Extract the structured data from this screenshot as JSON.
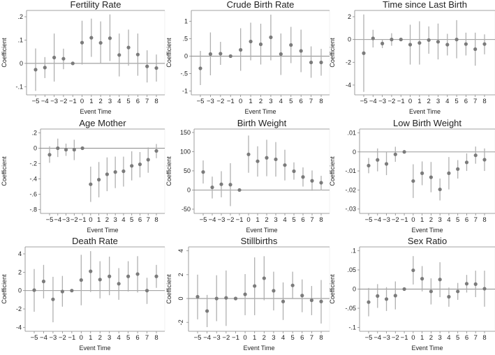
{
  "chart_data": [
    {
      "type": "scatter",
      "title": "Fertility Rate",
      "xlabel": "Event Time",
      "ylabel": "Coefficient",
      "categories": [
        "−5",
        "−4",
        "−3",
        "−2",
        "−1",
        "0",
        "1",
        "2",
        "3",
        "4",
        "5",
        "6",
        "7",
        "8"
      ],
      "yticks": [
        {
          "v": -0.1,
          "l": "-.1"
        },
        {
          "v": 0,
          "l": "0"
        },
        {
          "v": 0.1,
          "l": ".1"
        },
        {
          "v": 0.2,
          "l": ".2"
        }
      ],
      "ylim": [
        -0.135,
        0.227
      ],
      "estimate": [
        -0.027,
        -0.018,
        0.025,
        0.02,
        0,
        0.089,
        0.11,
        0.088,
        0.108,
        0.036,
        0.068,
        0.038,
        -0.013,
        -0.02
      ],
      "ci_low": [
        -0.118,
        -0.063,
        -0.078,
        -0.025,
        0,
        -0.005,
        0.028,
        0,
        0.01,
        -0.056,
        -0.01,
        -0.053,
        -0.082,
        -0.078
      ],
      "ci_high": [
        0.064,
        0.027,
        0.128,
        0.063,
        0,
        0.183,
        0.192,
        0.18,
        0.21,
        0.128,
        0.145,
        0.128,
        0.056,
        0.038
      ]
    },
    {
      "type": "scatter",
      "title": "Crude Birth Rate",
      "xlabel": "Event Time",
      "ylabel": "Coefficient",
      "categories": [
        "−5",
        "−3",
        "−2",
        "−1",
        "0",
        "1",
        "2",
        "3",
        "4",
        "5",
        "6",
        "7",
        "8"
      ],
      "yticks": [
        {
          "v": -1,
          "l": "-1"
        },
        {
          "v": -0.5,
          "l": "-.5"
        },
        {
          "v": 0,
          "l": "0"
        },
        {
          "v": 0.5,
          "l": ".5"
        },
        {
          "v": 1,
          "l": "1"
        }
      ],
      "ylim": [
        -1.11,
        1.31
      ],
      "estimate": [
        -0.35,
        0.06,
        0.07,
        0,
        0.18,
        0.42,
        0.34,
        0.54,
        0.06,
        0.32,
        0.15,
        -0.18,
        -0.18
      ],
      "ci_low": [
        -0.83,
        -0.55,
        -0.25,
        0,
        -0.42,
        -0.12,
        -0.24,
        -0.12,
        -0.54,
        -0.2,
        -0.46,
        -0.62,
        -0.56
      ],
      "ci_high": [
        0.15,
        0.68,
        0.41,
        0,
        0.8,
        0.96,
        0.93,
        1.19,
        0.65,
        0.84,
        0.76,
        0.28,
        0.21
      ]
    },
    {
      "type": "scatter",
      "title": "Time since Last Birth",
      "xlabel": "Event Time",
      "ylabel": "Coefficient",
      "categories": [
        "−5",
        "−4",
        "−3",
        "−2",
        "−1",
        "0",
        "1",
        "2",
        "3",
        "4",
        "5",
        "6",
        "7",
        "8"
      ],
      "yticks": [
        {
          "v": -4,
          "l": "-4"
        },
        {
          "v": -2,
          "l": "-2"
        },
        {
          "v": 0,
          "l": "0"
        },
        {
          "v": 2,
          "l": "2"
        }
      ],
      "ylim": [
        -4.86,
        2.55
      ],
      "estimate": [
        -1.2,
        0.1,
        -0.35,
        0,
        0,
        -0.45,
        -0.3,
        -0.05,
        -0.2,
        -0.45,
        0,
        -0.4,
        -0.85,
        -0.4
      ],
      "ci_low": [
        -4.6,
        -0.7,
        -0.75,
        -0.55,
        0,
        -2.2,
        -2.2,
        -1.25,
        -1.75,
        -1.4,
        -1.65,
        -1.4,
        -2.3,
        -1.3
      ],
      "ci_high": [
        2.2,
        0.85,
        0.0,
        0.55,
        0,
        1.3,
        1.6,
        1.15,
        1.4,
        0.5,
        1.7,
        0.6,
        0.6,
        0.45
      ]
    },
    {
      "type": "scatter",
      "title": "Age Mother",
      "xlabel": "Event Time",
      "ylabel": "Coefficient",
      "categories": [
        "−5",
        "−4",
        "−3",
        "−2",
        "−1",
        "0",
        "1",
        "2",
        "3",
        "4",
        "5",
        "6",
        "7",
        "8"
      ],
      "yticks": [
        {
          "v": -0.8,
          "l": "-.8"
        },
        {
          "v": -0.6,
          "l": "-.6"
        },
        {
          "v": -0.4,
          "l": "-.4"
        },
        {
          "v": -0.2,
          "l": "-.2"
        },
        {
          "v": 0,
          "l": "0"
        },
        {
          "v": 0.2,
          "l": ".2"
        }
      ],
      "ylim": [
        -0.85,
        0.25
      ],
      "estimate": [
        -0.085,
        0,
        -0.02,
        -0.02,
        0,
        -0.47,
        -0.41,
        -0.34,
        -0.31,
        -0.3,
        -0.23,
        -0.21,
        -0.15,
        -0.035
      ],
      "ci_low": [
        -0.19,
        -0.115,
        -0.1,
        -0.155,
        0,
        -0.7,
        -0.64,
        -0.56,
        -0.52,
        -0.5,
        -0.42,
        -0.38,
        -0.32,
        -0.13
      ],
      "ci_high": [
        0.025,
        0.125,
        0.06,
        0.11,
        0,
        -0.24,
        -0.18,
        -0.12,
        -0.11,
        -0.11,
        -0.04,
        -0.05,
        0.01,
        0.055
      ]
    },
    {
      "type": "scatter",
      "title": "Birth Weight",
      "xlabel": "Event Time",
      "ylabel": "Coefficient",
      "categories": [
        "−5",
        "−4",
        "−3",
        "−2",
        "−1",
        "0",
        "1",
        "2",
        "3",
        "4",
        "5",
        "6",
        "7",
        "8"
      ],
      "yticks": [
        {
          "v": -50,
          "l": "-50"
        },
        {
          "v": 0,
          "l": "0"
        },
        {
          "v": 50,
          "l": "50"
        },
        {
          "v": 100,
          "l": "100"
        },
        {
          "v": 150,
          "l": "150"
        }
      ],
      "ylim": [
        -61,
        159
      ],
      "estimate": [
        47,
        7,
        15,
        14,
        0,
        93,
        75,
        84,
        80,
        65,
        49,
        34,
        24,
        19
      ],
      "ci_low": [
        17,
        -22,
        -19,
        -42,
        0,
        45,
        35,
        36,
        35,
        25,
        27,
        9,
        -2,
        0
      ],
      "ci_high": [
        77,
        35,
        49,
        70,
        0,
        142,
        114,
        131,
        125,
        105,
        72,
        59,
        51,
        37
      ]
    },
    {
      "type": "scatter",
      "title": "Low Birth Weight",
      "xlabel": "Event Time",
      "ylabel": "Coefficient",
      "categories": [
        "−5",
        "−4",
        "−3",
        "−2",
        "−1",
        "0",
        "1",
        "2",
        "3",
        "4",
        "5",
        "6",
        "7",
        "8"
      ],
      "yticks": [
        {
          "v": -0.03,
          "l": "-.03"
        },
        {
          "v": -0.02,
          "l": "-.02"
        },
        {
          "v": -0.01,
          "l": "-.01"
        },
        {
          "v": 0,
          "l": "0"
        },
        {
          "v": 0.01,
          "l": ".01"
        }
      ],
      "ylim": [
        -0.0323,
        0.012
      ],
      "estimate": [
        -0.0072,
        -0.0042,
        -0.0063,
        -0.0013,
        0,
        -0.0153,
        -0.0112,
        -0.0133,
        -0.0197,
        -0.0112,
        -0.009,
        -0.0055,
        -0.0018,
        -0.0041
      ],
      "ci_low": [
        -0.0112,
        -0.0102,
        -0.0122,
        -0.0052,
        0,
        -0.0242,
        -0.0175,
        -0.0212,
        -0.0255,
        -0.0197,
        -0.014,
        -0.01,
        -0.0062,
        -0.01
      ],
      "ci_high": [
        -0.0032,
        0.0018,
        -0.0001,
        0.0027,
        0,
        -0.0065,
        -0.005,
        -0.0053,
        -0.014,
        -0.0027,
        -0.0043,
        -0.0008,
        0.0028,
        0.0018
      ]
    },
    {
      "type": "scatter",
      "title": "Death Rate",
      "xlabel": "Event Time",
      "ylabel": "Coefficient",
      "categories": [
        "−5",
        "−4",
        "−3",
        "−2",
        "−1",
        "0",
        "1",
        "2",
        "3",
        "4",
        "5",
        "6",
        "7",
        "8"
      ],
      "yticks": [
        {
          "v": -4,
          "l": "-4"
        },
        {
          "v": -2,
          "l": "-2"
        },
        {
          "v": 0,
          "l": "0"
        },
        {
          "v": 2,
          "l": "2"
        },
        {
          "v": 4,
          "l": "4"
        }
      ],
      "ylim": [
        -4.43,
        4.76
      ],
      "estimate": [
        0.05,
        1.0,
        -0.95,
        -0.1,
        0,
        1.15,
        2.1,
        1.2,
        1.55,
        0.75,
        1.55,
        1.8,
        0,
        1.55
      ],
      "ci_low": [
        -2.3,
        -0.85,
        -3.45,
        -1.75,
        0,
        -1.6,
        -0.15,
        -0.85,
        -0.5,
        -1.0,
        -0.1,
        -0.2,
        -1.45,
        0.3
      ],
      "ci_high": [
        2.35,
        2.8,
        1.5,
        1.6,
        0,
        3.9,
        4.3,
        3.2,
        3.7,
        2.45,
        3.2,
        3.75,
        1.4,
        2.8
      ]
    },
    {
      "type": "scatter",
      "title": "Stillbirths",
      "xlabel": "Event Time",
      "ylabel": "Coefficient",
      "rotated_yticks": true,
      "categories": [
        "−5",
        "−4",
        "−3",
        "−2",
        "−1",
        "0",
        "1",
        "2",
        "3",
        "4",
        "5",
        "6",
        "7",
        "8"
      ],
      "yticks": [
        {
          "v": -2,
          "l": "-2"
        },
        {
          "v": 0,
          "l": "0"
        },
        {
          "v": 2,
          "l": "2"
        },
        {
          "v": 4,
          "l": "4"
        }
      ],
      "ylim": [
        -2.75,
        4.33
      ],
      "estimate": [
        0.15,
        -1.05,
        0,
        0.05,
        0,
        0.35,
        1.05,
        1.7,
        0.65,
        -0.25,
        1.1,
        0.25,
        -0.15,
        -0.25
      ],
      "ci_low": [
        -1.75,
        -2.4,
        -1.9,
        -2.3,
        0,
        -1.4,
        -1.4,
        -0.15,
        -1.0,
        -1.8,
        -0.05,
        -1.15,
        -1.4,
        -2.1
      ],
      "ci_high": [
        2.0,
        0.3,
        1.95,
        2.35,
        0,
        2.05,
        3.45,
        3.55,
        2.25,
        1.35,
        2.25,
        1.6,
        1.05,
        1.55
      ]
    },
    {
      "type": "scatter",
      "title": "Sex Ratio",
      "xlabel": "Event Time",
      "ylabel": "Coefficient",
      "categories": [
        "−5",
        "−4",
        "−3",
        "−2",
        "−1",
        "0",
        "1",
        "2",
        "3",
        "4",
        "5",
        "6",
        "7",
        "8"
      ],
      "yticks": [
        {
          "v": -0.1,
          "l": "-.1"
        },
        {
          "v": -0.05,
          "l": "-.05"
        },
        {
          "v": 0,
          "l": "0"
        },
        {
          "v": 0.05,
          "l": ".05"
        },
        {
          "v": 0.1,
          "l": ".1"
        }
      ],
      "ylim": [
        -0.11,
        0.11
      ],
      "estimate": [
        -0.034,
        -0.018,
        -0.026,
        -0.017,
        0,
        0.049,
        0.027,
        -0.006,
        0.025,
        -0.02,
        -0.006,
        0.014,
        0.013,
        0.001
      ],
      "ci_low": [
        -0.071,
        -0.049,
        -0.057,
        -0.053,
        0,
        0.012,
        -0.006,
        -0.04,
        -0.021,
        -0.046,
        -0.028,
        -0.009,
        -0.021,
        -0.046
      ],
      "ci_high": [
        0.003,
        0.013,
        0.005,
        0.02,
        0,
        0.086,
        0.06,
        0.028,
        0.07,
        0.004,
        0.016,
        0.037,
        0.048,
        0.048
      ]
    }
  ],
  "colors": {
    "point": "#7b7b7b",
    "ci": "#b0b0b0",
    "zero_line": "#8a8a8a",
    "axis": "#8a8a8a",
    "text": "#222222"
  }
}
